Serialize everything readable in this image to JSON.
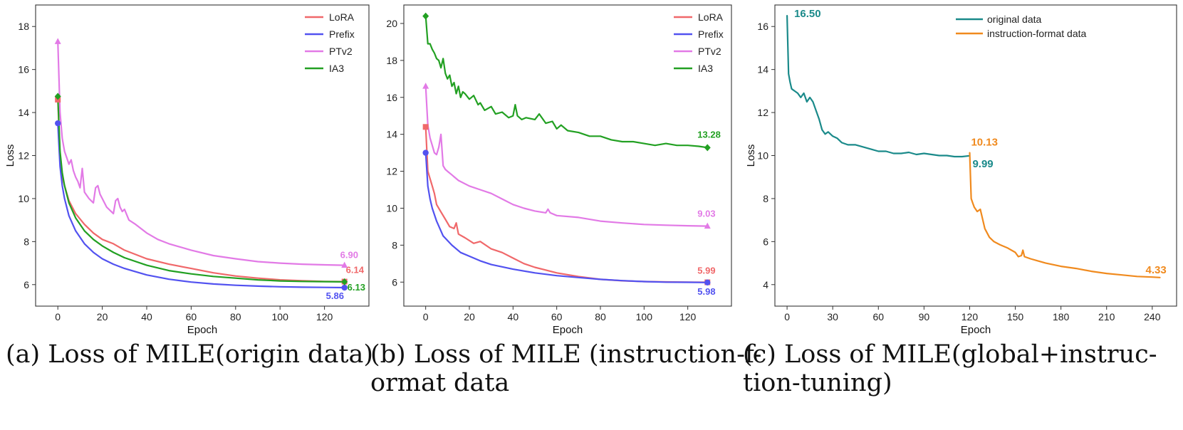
{
  "colors": {
    "LoRA": "#F0686A",
    "Prefix": "#5252F0",
    "PTv2": "#E27AE6",
    "IA3": "#22A022",
    "original": "#1A8A8A",
    "instruction": "#F08A1E"
  },
  "captions": {
    "a": "(a) Loss of MILE(origin data)",
    "b1": "(b) Loss of MILE (instruction-f-",
    "b2": "ormat data",
    "c1": "(c) Loss of MILE(global+instruc-",
    "c2": "tion-tuning)"
  },
  "chart_data": [
    {
      "id": "a",
      "type": "line",
      "xlabel": "Epoch",
      "ylabel": "Loss",
      "xlim": [
        -10,
        140
      ],
      "ylim": [
        5,
        19
      ],
      "xticks": [
        0,
        20,
        40,
        60,
        80,
        100,
        120
      ],
      "yticks": [
        6,
        8,
        10,
        12,
        14,
        16,
        18
      ],
      "legend_position": "top-right",
      "series": [
        {
          "name": "LoRA",
          "color_key": "LoRA",
          "marker": "square",
          "x": [
            0,
            1,
            2,
            3,
            5,
            8,
            12,
            16,
            20,
            25,
            30,
            40,
            50,
            60,
            70,
            80,
            90,
            100,
            110,
            120,
            129
          ],
          "y": [
            14.6,
            12.0,
            11.0,
            10.6,
            9.9,
            9.3,
            8.8,
            8.4,
            8.1,
            7.9,
            7.6,
            7.2,
            6.95,
            6.75,
            6.55,
            6.4,
            6.3,
            6.22,
            6.18,
            6.15,
            6.14
          ],
          "end_label": "6.14"
        },
        {
          "name": "Prefix",
          "color_key": "Prefix",
          "marker": "circle",
          "x": [
            0,
            1,
            2,
            3,
            5,
            8,
            12,
            16,
            20,
            25,
            30,
            40,
            50,
            60,
            70,
            80,
            90,
            100,
            110,
            120,
            129
          ],
          "y": [
            13.5,
            11.5,
            10.6,
            10.0,
            9.2,
            8.5,
            7.9,
            7.5,
            7.2,
            6.95,
            6.75,
            6.45,
            6.25,
            6.12,
            6.03,
            5.97,
            5.93,
            5.9,
            5.88,
            5.87,
            5.86
          ],
          "end_label": "5.86"
        },
        {
          "name": "PTv2",
          "color_key": "PTv2",
          "marker": "triangle",
          "x": [
            0,
            1,
            2,
            3,
            4,
            5,
            6,
            7,
            8,
            9,
            10,
            11,
            12,
            14,
            16,
            17,
            18,
            19,
            20,
            22,
            24,
            25,
            26,
            27,
            28,
            29,
            30,
            32,
            35,
            40,
            45,
            50,
            55,
            60,
            70,
            80,
            90,
            100,
            110,
            120,
            129
          ],
          "y": [
            17.3,
            14.0,
            12.8,
            12.2,
            11.9,
            11.6,
            11.8,
            11.3,
            11.0,
            10.8,
            10.5,
            11.4,
            10.3,
            10.0,
            9.8,
            10.5,
            10.6,
            10.2,
            10.0,
            9.6,
            9.4,
            9.3,
            9.9,
            10.0,
            9.6,
            9.4,
            9.5,
            9.0,
            8.8,
            8.4,
            8.1,
            7.9,
            7.75,
            7.6,
            7.35,
            7.2,
            7.07,
            7.0,
            6.95,
            6.92,
            6.9
          ],
          "end_label": "6.90"
        },
        {
          "name": "IA3",
          "color_key": "IA3",
          "marker": "diamond",
          "x": [
            0,
            1,
            2,
            3,
            5,
            8,
            12,
            16,
            20,
            25,
            30,
            40,
            50,
            60,
            70,
            80,
            90,
            100,
            110,
            120,
            129
          ],
          "y": [
            14.75,
            12.2,
            11.2,
            10.6,
            9.8,
            9.1,
            8.5,
            8.1,
            7.8,
            7.5,
            7.25,
            6.9,
            6.65,
            6.5,
            6.38,
            6.3,
            6.22,
            6.17,
            6.15,
            6.14,
            6.13
          ],
          "end_label": "6.13"
        }
      ]
    },
    {
      "id": "b",
      "type": "line",
      "xlabel": "Epoch",
      "ylabel": "",
      "xlim": [
        -10,
        140
      ],
      "ylim": [
        4.7,
        21
      ],
      "xticks": [
        0,
        20,
        40,
        60,
        80,
        100,
        120
      ],
      "yticks": [
        6,
        8,
        10,
        12,
        14,
        16,
        18,
        20
      ],
      "legend_position": "top-right",
      "series": [
        {
          "name": "LoRA",
          "color_key": "LoRA",
          "marker": "square",
          "x": [
            0,
            1,
            2,
            3,
            4,
            5,
            7,
            9,
            11,
            13,
            14,
            15,
            18,
            22,
            25,
            30,
            35,
            40,
            45,
            50,
            60,
            70,
            80,
            90,
            100,
            110,
            120,
            129
          ],
          "y": [
            14.4,
            12.0,
            11.6,
            11.2,
            10.8,
            10.2,
            9.8,
            9.4,
            9.0,
            8.9,
            9.2,
            8.6,
            8.4,
            8.1,
            8.2,
            7.8,
            7.6,
            7.3,
            7.0,
            6.8,
            6.5,
            6.3,
            6.15,
            6.07,
            6.03,
            6.01,
            6.0,
            5.99
          ],
          "end_label": "5.99"
        },
        {
          "name": "Prefix",
          "color_key": "Prefix",
          "marker": "circle",
          "x": [
            0,
            1,
            2,
            3,
            5,
            8,
            12,
            16,
            20,
            25,
            30,
            40,
            50,
            60,
            70,
            80,
            90,
            100,
            110,
            120,
            129
          ],
          "y": [
            13.0,
            11.2,
            10.5,
            10.0,
            9.3,
            8.5,
            8.0,
            7.6,
            7.4,
            7.15,
            6.95,
            6.7,
            6.5,
            6.35,
            6.25,
            6.15,
            6.08,
            6.03,
            6.0,
            5.99,
            5.98
          ],
          "end_label": "5.98"
        },
        {
          "name": "PTv2",
          "color_key": "PTv2",
          "marker": "triangle",
          "x": [
            0,
            1,
            2,
            3,
            4,
            5,
            6,
            7,
            8,
            9,
            10,
            12,
            15,
            20,
            25,
            30,
            35,
            40,
            45,
            50,
            55,
            56,
            57,
            60,
            70,
            80,
            90,
            100,
            110,
            120,
            129
          ],
          "y": [
            16.6,
            14.5,
            13.8,
            13.4,
            13.0,
            12.9,
            13.3,
            14.0,
            12.3,
            12.1,
            12.0,
            11.8,
            11.5,
            11.2,
            11.0,
            10.8,
            10.5,
            10.2,
            10.0,
            9.85,
            9.75,
            9.95,
            9.75,
            9.6,
            9.5,
            9.3,
            9.2,
            9.12,
            9.08,
            9.05,
            9.03
          ],
          "end_label": "9.03"
        },
        {
          "name": "IA3",
          "color_key": "IA3",
          "marker": "diamond",
          "x": [
            0,
            1,
            2,
            3,
            4,
            5,
            6,
            7,
            8,
            9,
            10,
            11,
            12,
            13,
            14,
            15,
            16,
            17,
            18,
            20,
            22,
            24,
            25,
            27,
            30,
            32,
            35,
            38,
            40,
            41,
            42,
            44,
            46,
            50,
            52,
            55,
            58,
            60,
            62,
            65,
            70,
            75,
            80,
            85,
            90,
            95,
            100,
            105,
            110,
            115,
            120,
            125,
            129
          ],
          "y": [
            20.4,
            18.9,
            18.9,
            18.6,
            18.4,
            18.1,
            18.0,
            17.6,
            18.1,
            17.3,
            17.0,
            17.2,
            16.6,
            16.8,
            16.2,
            16.6,
            16.0,
            16.3,
            16.2,
            15.9,
            16.1,
            15.6,
            15.7,
            15.3,
            15.5,
            15.1,
            15.2,
            14.9,
            15.0,
            15.6,
            15.0,
            14.8,
            14.9,
            14.8,
            15.1,
            14.6,
            14.7,
            14.3,
            14.5,
            14.2,
            14.1,
            13.9,
            13.9,
            13.7,
            13.6,
            13.6,
            13.5,
            13.4,
            13.5,
            13.4,
            13.4,
            13.35,
            13.28
          ],
          "end_label": "13.28"
        }
      ]
    },
    {
      "id": "c",
      "type": "line",
      "xlabel": "Epoch",
      "ylabel": "Loss",
      "xlim": [
        -8,
        256
      ],
      "ylim": [
        3,
        17
      ],
      "xticks": [
        0,
        30,
        60,
        90,
        120,
        150,
        180,
        210,
        240
      ],
      "yticks": [
        4,
        6,
        8,
        10,
        12,
        14,
        16
      ],
      "legend_position": "top-right",
      "series": [
        {
          "name": "original data",
          "color_key": "original",
          "x": [
            0,
            1,
            2,
            3,
            5,
            7,
            9,
            11,
            13,
            15,
            17,
            19,
            21,
            23,
            25,
            27,
            30,
            33,
            36,
            40,
            45,
            50,
            55,
            60,
            65,
            70,
            75,
            80,
            85,
            90,
            95,
            100,
            105,
            110,
            115,
            120
          ],
          "y": [
            16.5,
            13.8,
            13.4,
            13.1,
            13.0,
            12.9,
            12.7,
            12.9,
            12.5,
            12.7,
            12.5,
            12.1,
            11.7,
            11.2,
            11.0,
            11.1,
            10.9,
            10.8,
            10.6,
            10.5,
            10.5,
            10.4,
            10.3,
            10.2,
            10.2,
            10.1,
            10.1,
            10.15,
            10.05,
            10.1,
            10.05,
            10.0,
            10.0,
            9.95,
            9.95,
            9.99
          ],
          "start_label": "16.50",
          "end_label": "9.99"
        },
        {
          "name": "instruction-format data",
          "color_key": "instruction",
          "x": [
            120,
            121,
            122,
            123,
            125,
            127,
            130,
            133,
            136,
            140,
            145,
            150,
            152,
            154,
            155,
            156,
            160,
            165,
            170,
            180,
            190,
            200,
            210,
            220,
            230,
            240,
            245
          ],
          "y": [
            10.13,
            8.0,
            7.8,
            7.6,
            7.4,
            7.5,
            6.6,
            6.2,
            6.0,
            5.85,
            5.7,
            5.5,
            5.3,
            5.35,
            5.6,
            5.3,
            5.2,
            5.1,
            5.0,
            4.85,
            4.75,
            4.62,
            4.52,
            4.45,
            4.38,
            4.35,
            4.33
          ],
          "start_label": "10.13",
          "end_label": "4.33"
        }
      ]
    }
  ]
}
